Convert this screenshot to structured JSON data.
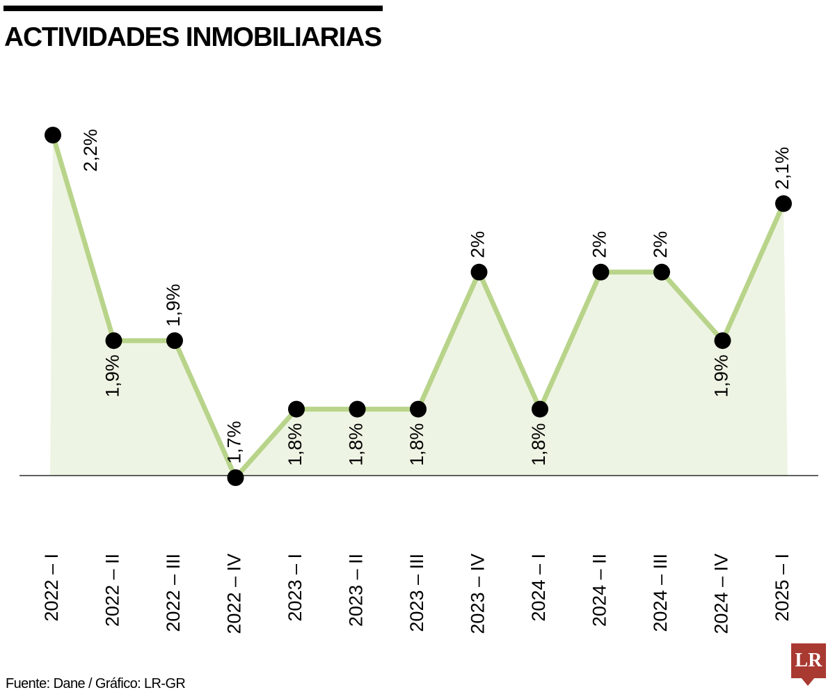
{
  "title": "ACTIVIDADES INMOBILIARIAS",
  "source": "Fuente: Dane / Gráfico: LR-GR",
  "logo": "LR",
  "colors": {
    "line": "#b8d48a",
    "fill": "#eef4e3",
    "marker": "#000000",
    "logo": "#a93a32"
  },
  "chart_data": {
    "type": "area",
    "title": "ACTIVIDADES INMOBILIARIAS",
    "xlabel": "",
    "ylabel": "",
    "ylim": [
      1.7,
      2.2
    ],
    "grid": false,
    "categories": [
      "2022 – I",
      "2022 – II",
      "2022 – III",
      "2022 – IV",
      "2023 – I",
      "2023 – II",
      "2023 – III",
      "2023 – IV",
      "2024 – I",
      "2024 – II",
      "2024 – III",
      "2024 – IV",
      "2025 – I"
    ],
    "values": [
      2.2,
      1.9,
      1.9,
      1.7,
      1.8,
      1.8,
      1.8,
      2.0,
      1.8,
      2.0,
      2.0,
      1.9,
      2.1
    ],
    "labels": [
      "2,2%",
      "1,9%",
      "1,9%",
      "1,7%",
      "1,8%",
      "1,8%",
      "1,8%",
      "2%",
      "1,8%",
      "2%",
      "2%",
      "1,9%",
      "2,1%"
    ]
  }
}
